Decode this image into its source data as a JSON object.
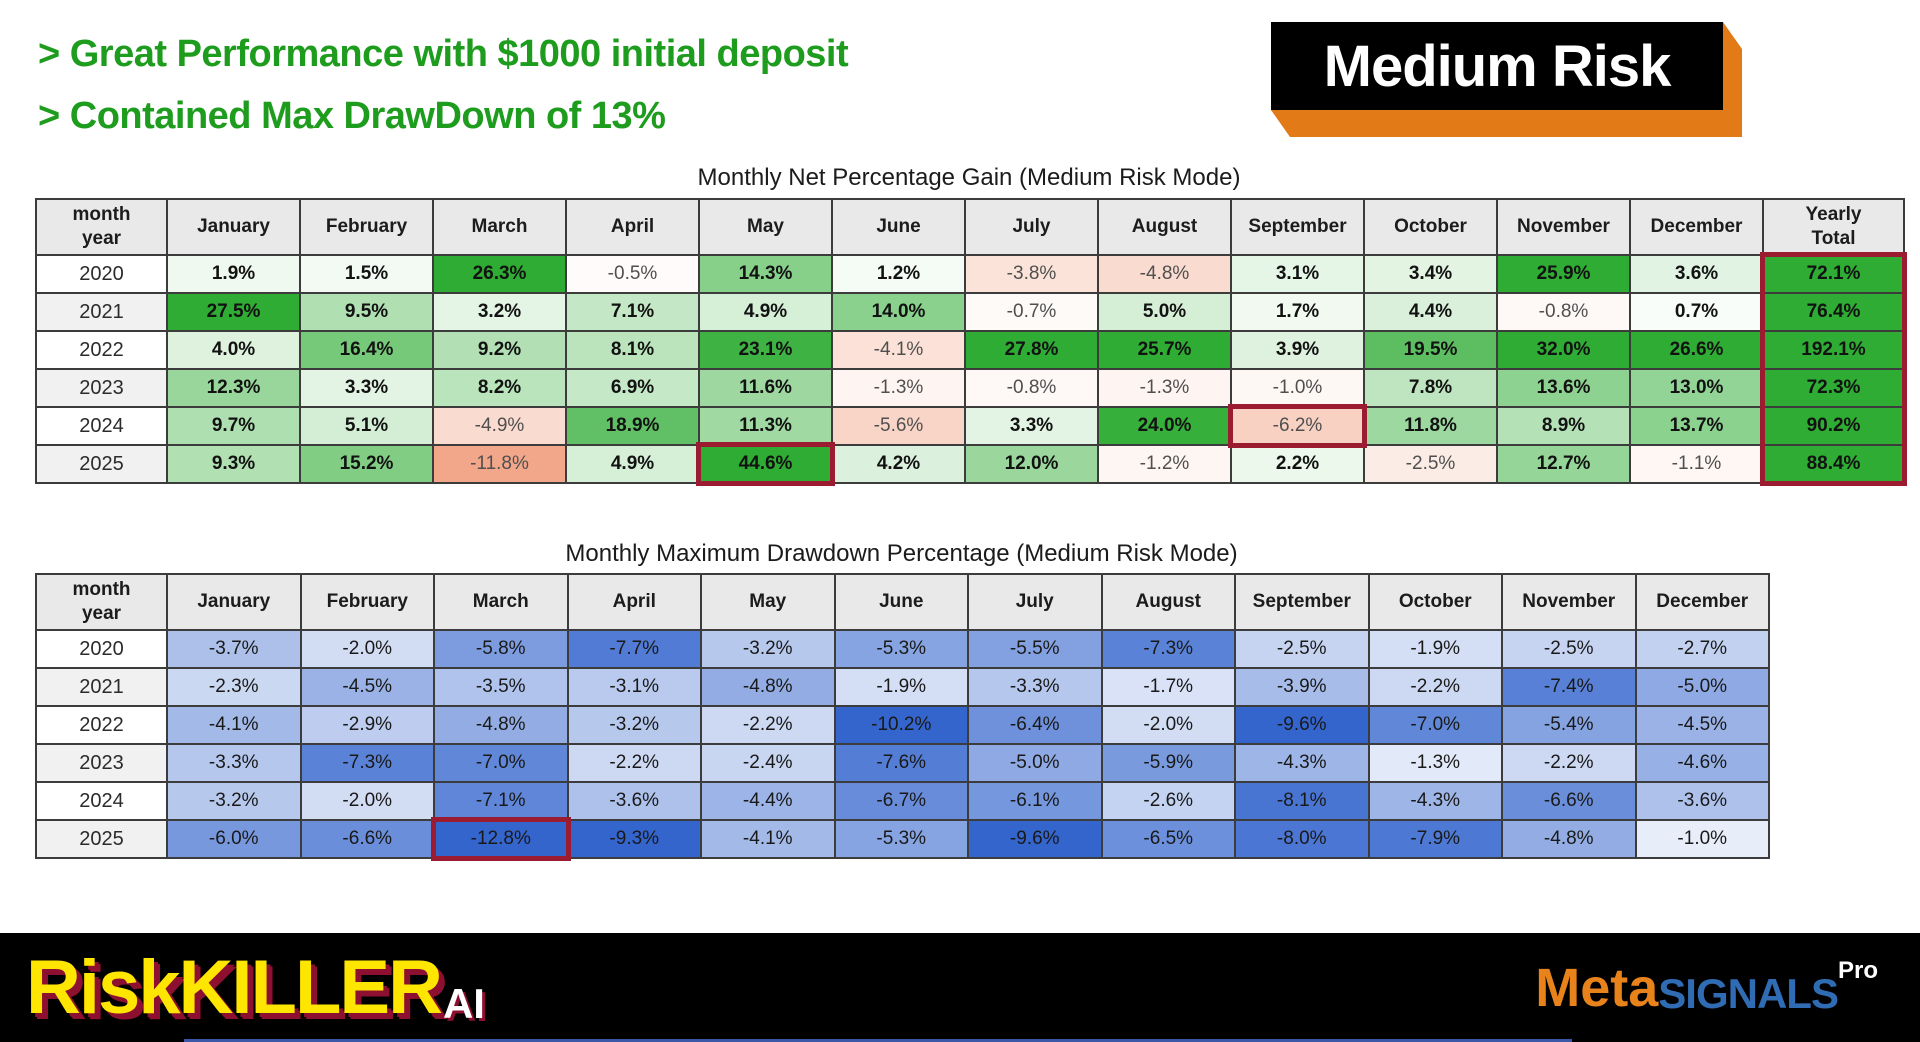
{
  "header": {
    "bullets": [
      "> Great Performance with $1000 initial deposit",
      "> Contained Max DrawDown of 13%"
    ],
    "text_color": "#1e9c1e",
    "badge": {
      "label": "Medium Risk",
      "bg": "#000000",
      "text_color": "#ffffff",
      "shadow_color": "#e27b17"
    }
  },
  "chart_data": [
    {
      "type": "heatmap",
      "title": "Monthly Net Percentage Gain (Medium Risk Mode)",
      "corner_label": [
        "month",
        "year"
      ],
      "columns": [
        "January",
        "February",
        "March",
        "April",
        "May",
        "June",
        "July",
        "August",
        "September",
        "October",
        "November",
        "December",
        "Yearly Total"
      ],
      "unit": "%",
      "rows": [
        {
          "year": "2020",
          "values": [
            1.9,
            1.5,
            26.3,
            -0.5,
            14.3,
            1.2,
            -3.8,
            -4.8,
            3.1,
            3.4,
            25.9,
            3.6
          ],
          "yearly_total": 72.1
        },
        {
          "year": "2021",
          "values": [
            27.5,
            9.5,
            3.2,
            7.1,
            4.9,
            14.0,
            -0.7,
            5.0,
            1.7,
            4.4,
            -0.8,
            0.7
          ],
          "yearly_total": 76.4
        },
        {
          "year": "2022",
          "values": [
            4.0,
            16.4,
            9.2,
            8.1,
            23.1,
            -4.1,
            27.8,
            25.7,
            3.9,
            19.5,
            32.0,
            26.6
          ],
          "yearly_total": 192.1
        },
        {
          "year": "2023",
          "values": [
            12.3,
            3.3,
            8.2,
            6.9,
            11.6,
            -1.3,
            -0.8,
            -1.3,
            -1.0,
            7.8,
            13.6,
            13.0
          ],
          "yearly_total": 72.3
        },
        {
          "year": "2024",
          "values": [
            9.7,
            5.1,
            -4.9,
            18.9,
            11.3,
            -5.6,
            3.3,
            24.0,
            -6.2,
            11.8,
            8.9,
            13.7
          ],
          "yearly_total": 90.2
        },
        {
          "year": "2025",
          "values": [
            9.3,
            15.2,
            -11.8,
            4.9,
            44.6,
            4.2,
            12.0,
            -1.2,
            2.2,
            -2.5,
            12.7,
            -1.1
          ],
          "yearly_total": 88.4
        }
      ],
      "highlights": [
        {
          "kind": "column-box",
          "column": "yearly_total"
        },
        {
          "kind": "cell-box",
          "year": "2025",
          "month": "May"
        },
        {
          "kind": "cell-box",
          "year": "2024",
          "month": "September"
        }
      ],
      "palette": {
        "positive": "#2eac33",
        "negative": "#f2a689",
        "highlight_border": "#9b1c31"
      }
    },
    {
      "type": "heatmap",
      "title": "Monthly Maximum Drawdown Percentage (Medium Risk Mode)",
      "corner_label": [
        "month",
        "year"
      ],
      "columns": [
        "January",
        "February",
        "March",
        "April",
        "May",
        "June",
        "July",
        "August",
        "September",
        "October",
        "November",
        "December"
      ],
      "unit": "%",
      "rows": [
        {
          "year": "2020",
          "values": [
            -3.7,
            -2.0,
            -5.8,
            -7.7,
            -3.2,
            -5.3,
            -5.5,
            -7.3,
            -2.5,
            -1.9,
            -2.5,
            -2.7
          ]
        },
        {
          "year": "2021",
          "values": [
            -2.3,
            -4.5,
            -3.5,
            -3.1,
            -4.8,
            -1.9,
            -3.3,
            -1.7,
            -3.9,
            -2.2,
            -7.4,
            -5.0
          ]
        },
        {
          "year": "2022",
          "values": [
            -4.1,
            -2.9,
            -4.8,
            -3.2,
            -2.2,
            -10.2,
            -6.4,
            -2.0,
            -9.6,
            -7.0,
            -5.4,
            -4.5
          ]
        },
        {
          "year": "2023",
          "values": [
            -3.3,
            -7.3,
            -7.0,
            -2.2,
            -2.4,
            -7.6,
            -5.0,
            -5.9,
            -4.3,
            -1.3,
            -2.2,
            -4.6
          ]
        },
        {
          "year": "2024",
          "values": [
            -3.2,
            -2.0,
            -7.1,
            -3.6,
            -4.4,
            -6.7,
            -6.1,
            -2.6,
            -8.1,
            -4.3,
            -6.6,
            -3.6
          ]
        },
        {
          "year": "2025",
          "values": [
            -6.0,
            -6.6,
            -12.8,
            -9.3,
            -4.1,
            -5.3,
            -9.6,
            -6.5,
            -8.0,
            -7.9,
            -4.8,
            -1.0
          ]
        }
      ],
      "highlights": [
        {
          "kind": "cell-box",
          "year": "2025",
          "month": "March"
        }
      ],
      "palette": {
        "negative": "#3465cd",
        "highlight_border": "#9b1c31"
      }
    }
  ],
  "footer": {
    "bg": "#000000",
    "riskkiller": {
      "text": "RiskKILLER",
      "suffix": "AI",
      "text_color": "#ffe600",
      "suffix_color": "#ffffff",
      "shadow_color": "#8e1030"
    },
    "metasignals": {
      "part1": "Meta",
      "part2": "SIGNALS",
      "part3": "Pro",
      "part1_color": "#e8821a",
      "part2_color": "#2f6cb3",
      "part3_color": "#ffffff"
    },
    "accent_line_color": "#3a57a8"
  }
}
